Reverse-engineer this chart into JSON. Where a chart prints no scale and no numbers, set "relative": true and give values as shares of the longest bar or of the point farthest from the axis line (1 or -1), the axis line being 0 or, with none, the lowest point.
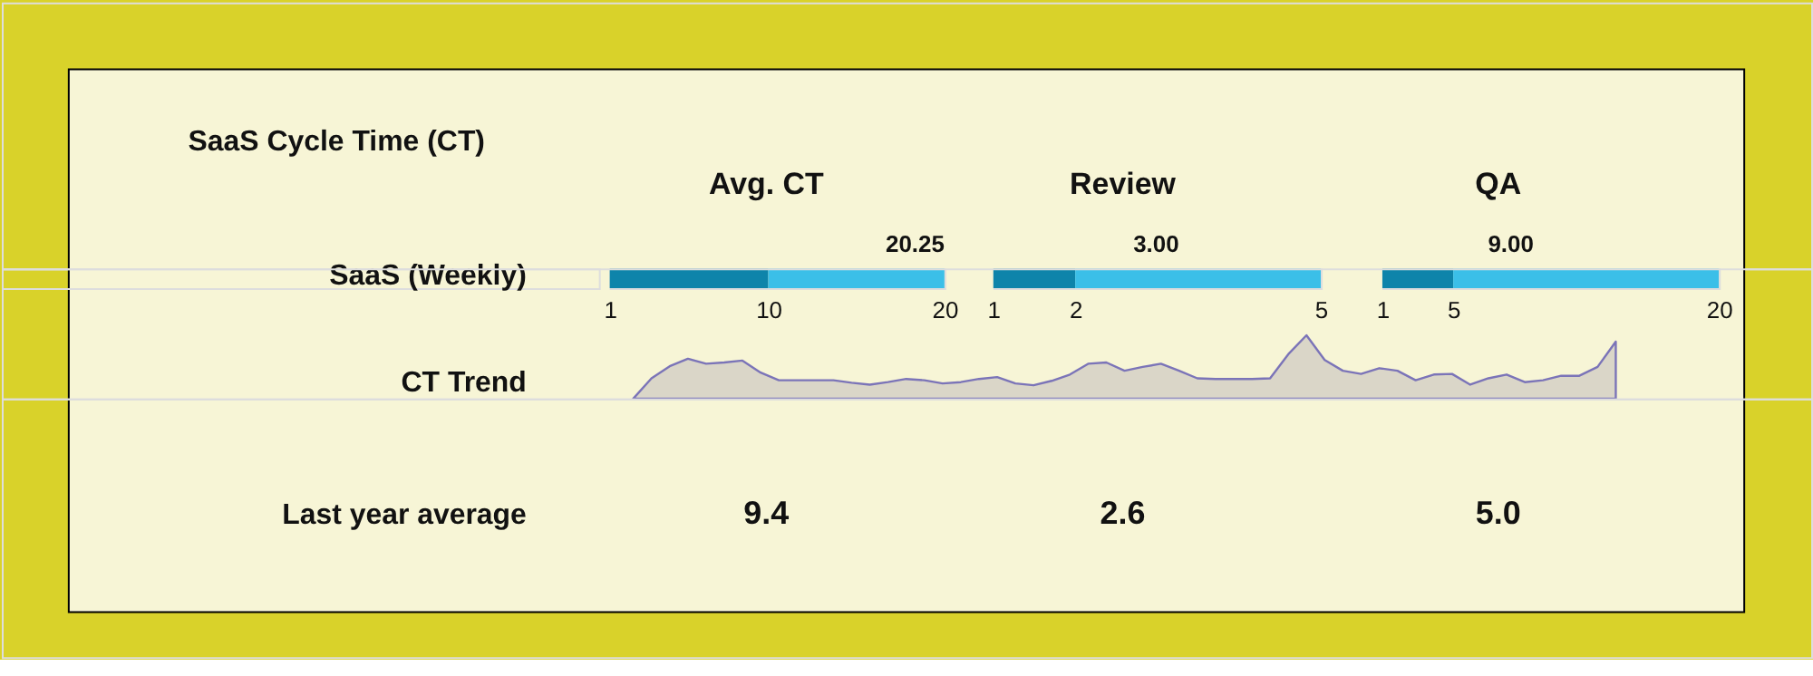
{
  "chart_data": [
    {
      "type": "other",
      "title": "SaaS Cycle Time (CT)",
      "annotations": [
        "SaaS (Weekly)",
        "CT Trend",
        "Last year average"
      ]
    },
    {
      "type": "bar",
      "title": "Avg. CT",
      "orientation": "horizontal",
      "stacked": true,
      "categories": [
        null
      ],
      "series": [
        {
          "color": "#0e84aa",
          "values": [
            10
          ]
        },
        {
          "color": "#3bbfe8",
          "values": [
            10
          ]
        }
      ],
      "xlim": [
        1,
        20
      ],
      "xticks": [
        1,
        10,
        20
      ],
      "annotations": [
        "20.25",
        "9.4"
      ]
    },
    {
      "type": "bar",
      "title": "Review",
      "orientation": "horizontal",
      "stacked": true,
      "categories": [
        null
      ],
      "series": [
        {
          "color": "#0e84aa",
          "values": [
            2
          ]
        },
        {
          "color": "#3bbfe8",
          "values": [
            3
          ]
        }
      ],
      "xlim": [
        1,
        5
      ],
      "xticks": [
        1,
        2,
        5
      ],
      "annotations": [
        "3.00",
        "2.6"
      ]
    },
    {
      "type": "bar",
      "title": "QA",
      "orientation": "horizontal",
      "stacked": true,
      "categories": [
        null
      ],
      "series": [
        {
          "color": "#0e84aa",
          "values": [
            5
          ]
        },
        {
          "color": "#3bbfe8",
          "values": [
            15
          ]
        }
      ],
      "xlim": [
        1,
        20
      ],
      "xticks": [
        1,
        5,
        20
      ],
      "annotations": [
        "9.00",
        "5.0"
      ]
    },
    {
      "type": "area",
      "relative": true,
      "categories": [
        null,
        null,
        null,
        null,
        null,
        null,
        null,
        null,
        null,
        null,
        null,
        null,
        null,
        null,
        null,
        null,
        null,
        null,
        null,
        null,
        null,
        null,
        null,
        null,
        null,
        null,
        null,
        null,
        null,
        null,
        null,
        null,
        null,
        null,
        null,
        null,
        null,
        null,
        null,
        null,
        null,
        null,
        null,
        null,
        null,
        null,
        null,
        null,
        null,
        null,
        null,
        null,
        null,
        null,
        null
      ],
      "series": [
        {
          "color": "#dad6c8",
          "values": [
            0,
            0.32,
            0.51,
            0.63,
            0.55,
            0.57,
            0.6,
            0.41,
            0.29,
            0.29,
            0.29,
            0.29,
            0.25,
            0.22,
            0.26,
            0.31,
            0.29,
            0.24,
            0.26,
            0.31,
            0.34,
            0.24,
            0.21,
            0.28,
            0.38,
            0.55,
            0.57,
            0.44,
            0.5,
            0.55,
            0.44,
            0.32,
            0.31,
            0.31,
            0.31,
            0.32,
            0.7,
            1,
            0.61,
            0.44,
            0.39,
            0.48,
            0.44,
            0.29,
            0.38,
            0.39,
            0.22,
            0.32,
            0.38,
            0.26,
            0.29,
            0.36,
            0.36,
            0.5,
            0.9
          ]
        }
      ]
    }
  ]
}
